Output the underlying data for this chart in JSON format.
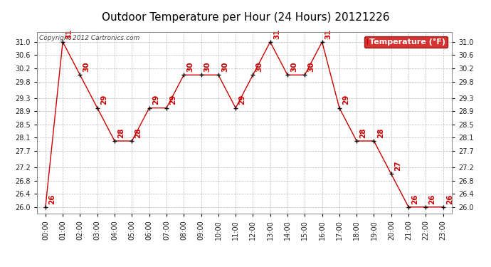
{
  "title": "Outdoor Temperature per Hour (24 Hours) 20121226",
  "hours": [
    "00:00",
    "01:00",
    "02:00",
    "03:00",
    "04:00",
    "05:00",
    "06:00",
    "07:00",
    "08:00",
    "09:00",
    "10:00",
    "11:00",
    "12:00",
    "13:00",
    "14:00",
    "15:00",
    "16:00",
    "17:00",
    "18:00",
    "19:00",
    "20:00",
    "21:00",
    "22:00",
    "23:00"
  ],
  "temperatures": [
    26,
    31,
    30,
    29,
    28,
    28,
    29,
    29,
    30,
    30,
    30,
    29,
    30,
    31,
    30,
    30,
    31,
    29,
    28,
    28,
    27,
    26,
    26,
    26
  ],
  "ylim_min": 25.8,
  "ylim_max": 31.3,
  "yticks": [
    26.0,
    26.4,
    26.8,
    27.2,
    27.7,
    28.1,
    28.5,
    28.9,
    29.3,
    29.8,
    30.2,
    30.6,
    31.0
  ],
  "line_color": "#cc0000",
  "marker_color": "#000000",
  "bg_color": "#ffffff",
  "plot_bg_color": "#ffffff",
  "grid_color": "#bbbbbb",
  "legend_bg": "#cc0000",
  "legend_text": "Temperature (°F)",
  "copyright_text": "Copyright 2012 Cartronics.com",
  "label_color": "#cc0000",
  "title_color": "#000000",
  "label_fontsize": 7.5,
  "title_fontsize": 11,
  "copyright_fontsize": 6.5,
  "tick_fontsize": 7,
  "legend_fontsize": 8
}
